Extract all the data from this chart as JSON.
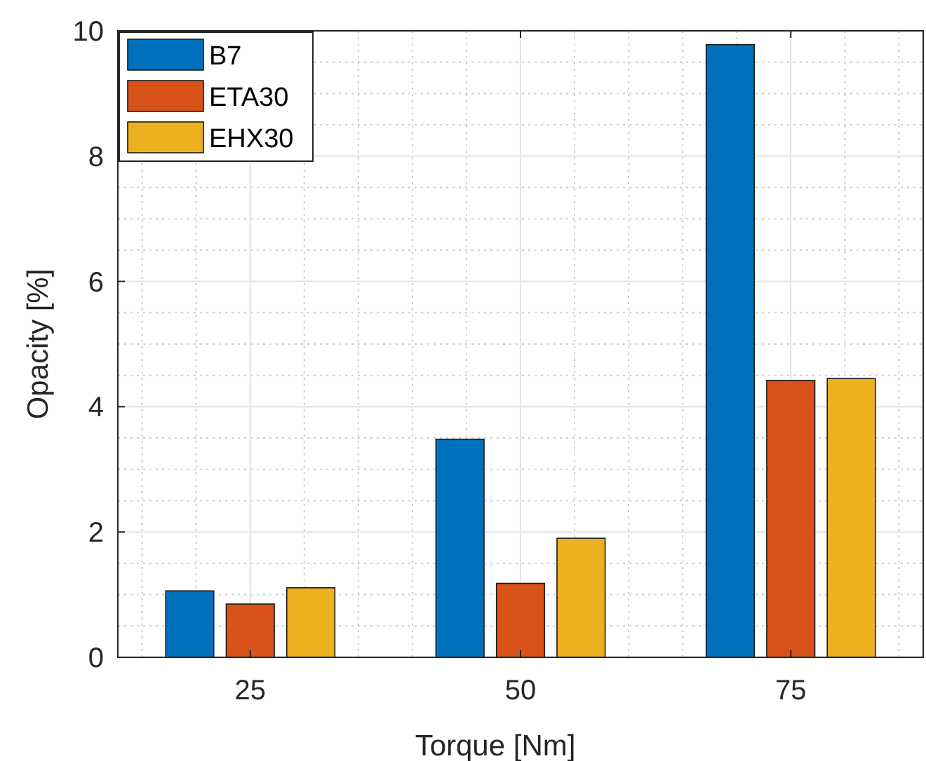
{
  "chart_data": {
    "type": "bar",
    "categories": [
      "25",
      "50",
      "75"
    ],
    "series": [
      {
        "name": "B7",
        "color": "#0072bd",
        "values": [
          1.06,
          3.48,
          9.78
        ]
      },
      {
        "name": "ETA30",
        "color": "#d95319",
        "values": [
          0.85,
          1.18,
          4.42
        ]
      },
      {
        "name": "EHX30",
        "color": "#edb120",
        "values": [
          1.11,
          1.9,
          4.45
        ]
      }
    ],
    "xlabel": "Torque [Nm]",
    "ylabel": "Opacity [%]",
    "ylim": [
      0,
      10
    ],
    "yticks": [
      0,
      2,
      4,
      6,
      8,
      10
    ],
    "grid": true,
    "legend": "top left"
  }
}
